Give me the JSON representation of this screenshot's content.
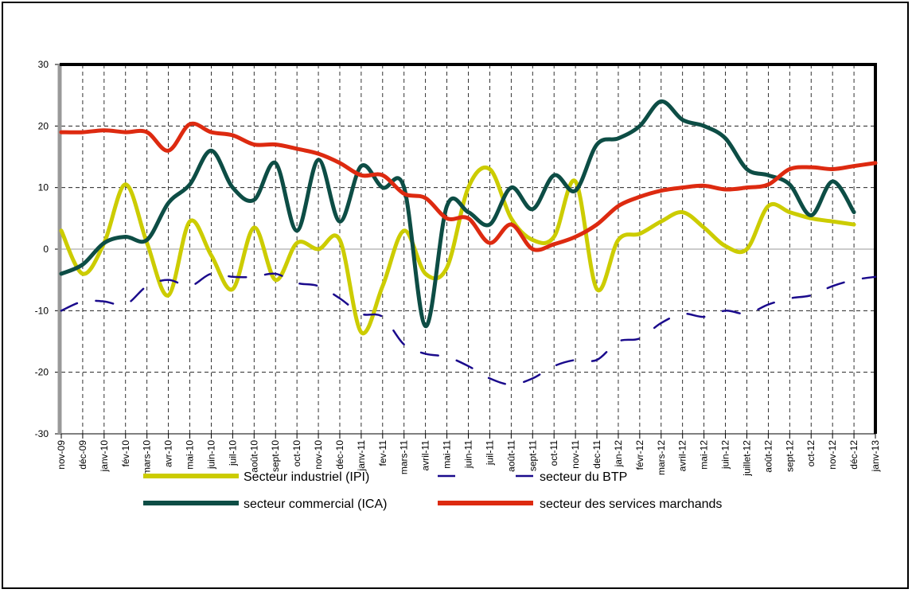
{
  "chart_data": {
    "type": "line",
    "categories": [
      "nov-09",
      "déc-09",
      "janv-10",
      "fév-10",
      "mars-10",
      "avr-10",
      "mai-10",
      "juin-10",
      "juil-10",
      "août-10",
      "sept-10",
      "oct-10",
      "nov-10",
      "déc-10",
      "janv-11",
      "fev-11",
      "mars-11",
      "avril-11",
      "mai-11",
      "juin-11",
      "juil-11",
      "août-11",
      "sept-11",
      "oct-11",
      "nov-11",
      "dec-11",
      "jan-12",
      "févr-12",
      "mars-12",
      "avril-12",
      "mai-12",
      "juin-12",
      "juillet-12",
      "août-12",
      "sept-12",
      "oct-12",
      "nov-12",
      "déc-12",
      "janv-13"
    ],
    "series": [
      {
        "name": "Secteur industriel (IPI)",
        "color": "#cccc00",
        "dashed": false,
        "values": [
          3,
          -4,
          1,
          10.5,
          1,
          -7.5,
          4.5,
          -1,
          -6.5,
          3.5,
          -5,
          1,
          0,
          1.5,
          -13.5,
          -6,
          3,
          -4,
          -3,
          10,
          13,
          5,
          1.5,
          2,
          11,
          -6.5,
          1.5,
          2.5,
          4.5,
          6,
          3.5,
          0.5,
          0,
          7,
          6,
          5,
          4.5,
          4,
          null
        ]
      },
      {
        "name": "secteur du BTP",
        "color": "#1a0a8c",
        "dashed": true,
        "values": [
          -10,
          -8.5,
          -8.5,
          -9,
          -6,
          -5,
          -6,
          -4,
          -4.5,
          -4.5,
          -4,
          -5.5,
          -6,
          -8,
          -10.5,
          -11,
          -15.5,
          -17,
          -17.5,
          -19,
          -21,
          -22,
          -21,
          -19,
          -18,
          -18,
          -15,
          -14.5,
          -12,
          -10.5,
          -11,
          -10,
          -10.5,
          -9,
          -8,
          -7.5,
          -6,
          -5,
          -4.5
        ]
      },
      {
        "name": "secteur commercial (ICA)",
        "color": "#0d4d45",
        "dashed": false,
        "values": [
          -4,
          -2.5,
          1,
          2,
          1.5,
          7.5,
          10.5,
          16,
          10,
          8,
          14,
          3,
          14.5,
          4.5,
          13.5,
          10,
          10,
          -12.5,
          7,
          6,
          4,
          10,
          6.5,
          12,
          9.5,
          17,
          18,
          20,
          24,
          21,
          20,
          18,
          13,
          12,
          10.5,
          5.5,
          11,
          6,
          null
        ]
      },
      {
        "name": "secteur des services marchands",
        "color": "#dd2a10",
        "dashed": false,
        "values": [
          19,
          19,
          19.3,
          19,
          19,
          16,
          20.3,
          19,
          18.5,
          17,
          17,
          16.3,
          15.5,
          14,
          12,
          12,
          9,
          8.3,
          5,
          5,
          1,
          4,
          0,
          0.8,
          2,
          4,
          7,
          8.5,
          9.5,
          10,
          10.3,
          9.7,
          10,
          10.5,
          13,
          13.3,
          13,
          13.5,
          14
        ]
      }
    ],
    "ylim": [
      -30,
      30
    ],
    "yticks": [
      -30,
      -20,
      -10,
      0,
      10,
      20,
      30
    ],
    "grid": true
  }
}
